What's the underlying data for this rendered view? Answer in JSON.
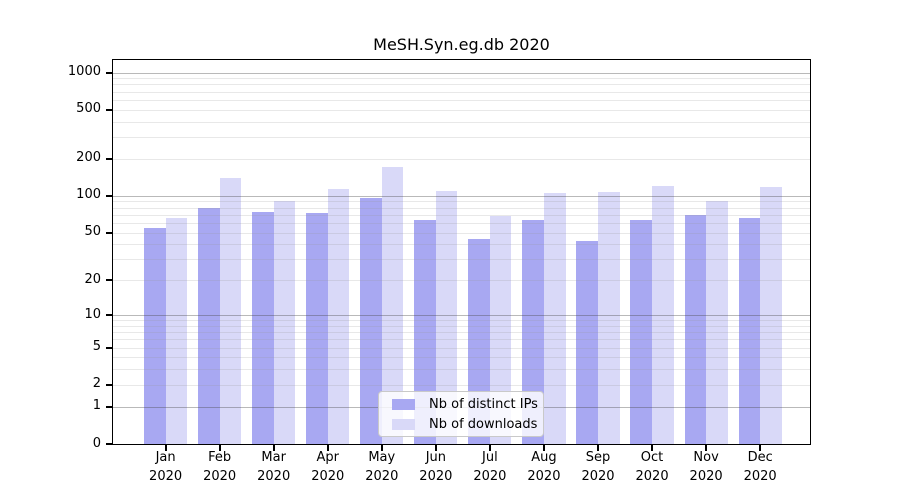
{
  "title": "MeSH.Syn.eg.db 2020",
  "chart_data": {
    "type": "bar",
    "title": "MeSH.Syn.eg.db 2020",
    "y_scale": "log1p",
    "ylim": [
      0,
      1280
    ],
    "grid": "on",
    "legend_position": "inside-bottom-center",
    "y_ticks": [
      0,
      1,
      2,
      5,
      10,
      20,
      50,
      100,
      200,
      500,
      1000
    ],
    "y_major_gridlines": [
      1,
      10,
      100,
      1000
    ],
    "months": [
      "Jan",
      "Feb",
      "Mar",
      "Apr",
      "May",
      "Jun",
      "Jul",
      "Aug",
      "Sep",
      "Oct",
      "Nov",
      "Dec"
    ],
    "year": "2020",
    "categories": [
      "Jan 2020",
      "Feb 2020",
      "Mar 2020",
      "Apr 2020",
      "May 2020",
      "Jun 2020",
      "Jul 2020",
      "Aug 2020",
      "Sep 2020",
      "Oct 2020",
      "Nov 2020",
      "Dec 2020"
    ],
    "series": [
      {
        "name": "Nb of distinct IPs",
        "color": "#a8a8f2",
        "values": [
          55,
          80,
          74,
          72,
          96,
          64,
          44,
          64,
          43,
          63,
          70,
          66
        ]
      },
      {
        "name": "Nb of downloads",
        "color": "#d9d9f8",
        "values": [
          66,
          141,
          91,
          113,
          173,
          110,
          68,
          105,
          108,
          121,
          91,
          119
        ]
      }
    ]
  }
}
